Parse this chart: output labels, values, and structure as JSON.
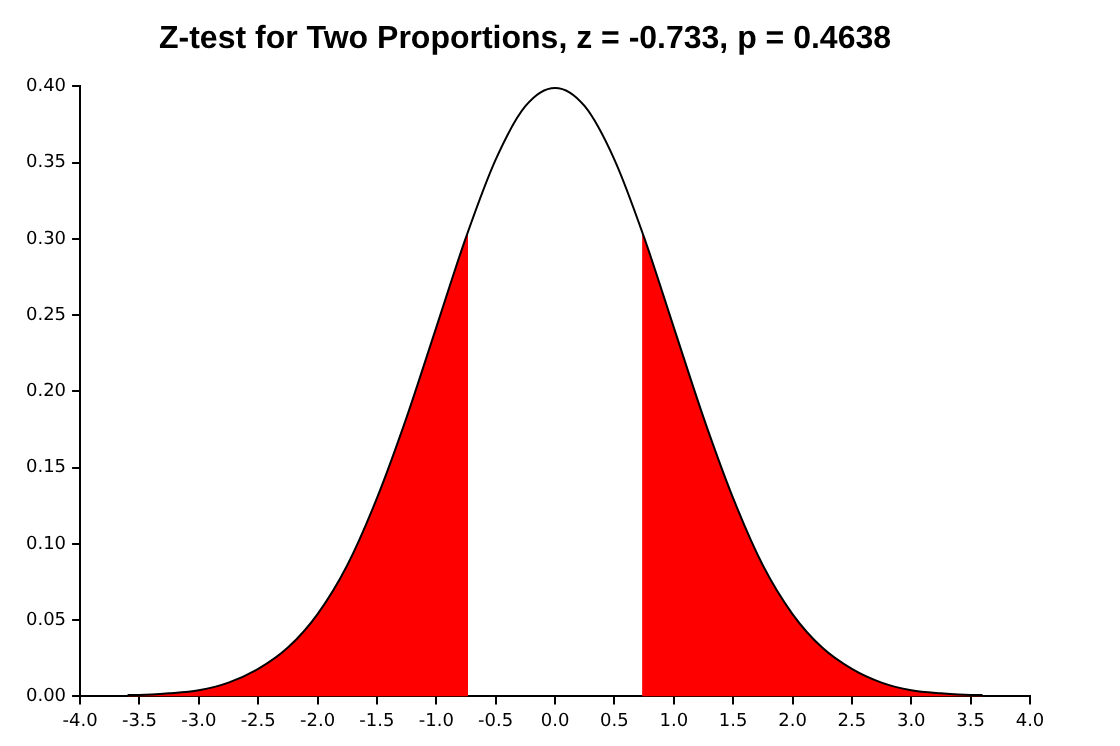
{
  "chart_data": {
    "type": "line",
    "title": "Z-test for Two Proportions, z = -0.733, p = 0.4638",
    "xlim": [
      -4,
      4
    ],
    "xticks": [
      {
        "value": -4,
        "label": "-4.0"
      },
      {
        "value": -3.5,
        "label": "-3.5"
      },
      {
        "value": -3,
        "label": "-3.0"
      },
      {
        "value": -2.5,
        "label": "-2.5"
      },
      {
        "value": -2,
        "label": "-2.0"
      },
      {
        "value": -1.5,
        "label": "-1.5"
      },
      {
        "value": -1,
        "label": "-1.0"
      },
      {
        "value": -0.5,
        "label": "-0.5"
      },
      {
        "value": 0,
        "label": "0.0"
      },
      {
        "value": 0.5,
        "label": "0.5"
      },
      {
        "value": 1,
        "label": "1.0"
      },
      {
        "value": 1.5,
        "label": "1.5"
      },
      {
        "value": 2,
        "label": "2.0"
      },
      {
        "value": 2.5,
        "label": "2.5"
      },
      {
        "value": 3,
        "label": "3.0"
      },
      {
        "value": 3.5,
        "label": "3.5"
      },
      {
        "value": 4,
        "label": "4.0"
      }
    ],
    "ylim": [
      0,
      0.4
    ],
    "yticks": [
      {
        "value": 0,
        "label": "0.00"
      },
      {
        "value": 0.05,
        "label": "0.05"
      },
      {
        "value": 0.1,
        "label": "0.10"
      },
      {
        "value": 0.15,
        "label": "0.15"
      },
      {
        "value": 0.2,
        "label": "0.20"
      },
      {
        "value": 0.25,
        "label": "0.25"
      },
      {
        "value": 0.3,
        "label": "0.30"
      },
      {
        "value": 0.35,
        "label": "0.35"
      },
      {
        "value": 0.4,
        "label": "0.40"
      }
    ],
    "grid": false,
    "legend": false,
    "marker": "none",
    "series": [
      {
        "type": "line",
        "color": "#000000",
        "x": [
          -3.6,
          -3.5,
          -3.25,
          -3,
          -2.75,
          -2.5,
          -2.25,
          -2,
          -1.75,
          -1.5,
          -1.25,
          -1,
          -0.75,
          -0.5,
          -0.25,
          0,
          0.25,
          0.5,
          0.75,
          1,
          1.25,
          1.5,
          1.75,
          2,
          2.25,
          2.5,
          2.75,
          3,
          3.25,
          3.5,
          3.6
        ],
        "values": [
          0.001,
          0.001,
          0.002,
          0.004,
          0.009,
          0.018,
          0.032,
          0.054,
          0.086,
          0.13,
          0.183,
          0.242,
          0.301,
          0.352,
          0.387,
          0.399,
          0.387,
          0.352,
          0.301,
          0.242,
          0.183,
          0.13,
          0.086,
          0.054,
          0.032,
          0.018,
          0.009,
          0.004,
          0.002,
          0.001,
          0.001
        ]
      },
      {
        "type": "area",
        "color": "#ff0000",
        "x": [
          -3.6,
          -3.5,
          -3.25,
          -3,
          -2.75,
          -2.5,
          -2.25,
          -2,
          -1.75,
          -1.5,
          -1.25,
          -1,
          -0.75,
          -0.733
        ],
        "values": [
          0.001,
          0.001,
          0.002,
          0.004,
          0.009,
          0.018,
          0.032,
          0.054,
          0.086,
          0.13,
          0.183,
          0.242,
          0.301,
          0.305
        ]
      },
      {
        "type": "area",
        "color": "#ff0000",
        "x": [
          0.733,
          0.75,
          1,
          1.25,
          1.5,
          1.75,
          2,
          2.25,
          2.5,
          2.75,
          3,
          3.25,
          3.5,
          3.6
        ],
        "values": [
          0.305,
          0.301,
          0.242,
          0.183,
          0.13,
          0.086,
          0.054,
          0.032,
          0.018,
          0.009,
          0.004,
          0.002,
          0.001,
          0.001
        ]
      }
    ]
  }
}
